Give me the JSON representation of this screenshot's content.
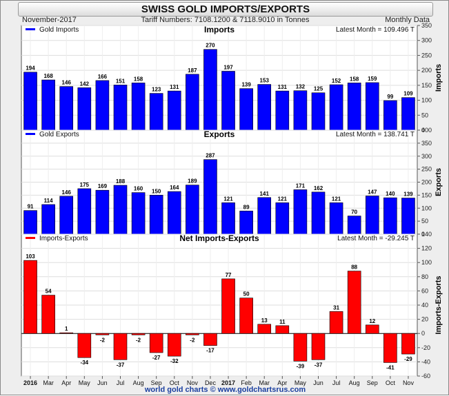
{
  "header": {
    "title": "SWISS GOLD IMPORTS/EXPORTS",
    "date": "November-2017",
    "tariff": "Tariff Numbers: 7108.1200 & 7118.9010 in Tonnes",
    "frequency": "Monthly Data"
  },
  "footer": "world gold charts © www.goldchartsrus.com",
  "colors": {
    "imports": "#0000ff",
    "exports": "#0000ff",
    "net": "#ff0000"
  },
  "chart_data": [
    {
      "type": "bar",
      "title": "Imports",
      "ylabel": "Imports",
      "legend": "Gold Imports",
      "latest": "Latest Month = 109.496 T",
      "ylim": [
        0,
        350
      ],
      "yticks": [
        0,
        50,
        100,
        150,
        200,
        250,
        300,
        350
      ],
      "categories": [
        "2016",
        "Mar",
        "Apr",
        "May",
        "Jun",
        "Jul",
        "Aug",
        "Sep",
        "Oct",
        "Nov",
        "Dec",
        "2017",
        "Feb",
        "Mar",
        "Apr",
        "May",
        "Jun",
        "Jul",
        "Aug",
        "Sep",
        "Oct",
        "Nov"
      ],
      "values": [
        194,
        168,
        146,
        142,
        166,
        151,
        158,
        123,
        131,
        187,
        270,
        197,
        139,
        153,
        131,
        132,
        125,
        152,
        158,
        159,
        99,
        109
      ],
      "labels": [
        "194",
        "168",
        "146",
        "142",
        "166",
        "151",
        "158",
        "123",
        "131",
        "187",
        "270",
        "197",
        "139",
        "153",
        "131",
        "132",
        "125",
        "152",
        "158",
        "159",
        "99",
        "109"
      ]
    },
    {
      "type": "bar",
      "title": "Exports",
      "ylabel": "Exports",
      "legend": "Gold Exports",
      "latest": "Latest Month = 138.741 T",
      "ylim": [
        0,
        400
      ],
      "yticks": [
        0,
        50,
        100,
        150,
        200,
        250,
        300,
        350,
        400
      ],
      "categories": [
        "2016",
        "Mar",
        "Apr",
        "May",
        "Jun",
        "Jul",
        "Aug",
        "Sep",
        "Oct",
        "Nov",
        "Dec",
        "2017",
        "Feb",
        "Mar",
        "Apr",
        "May",
        "Jun",
        "Jul",
        "Aug",
        "Sep",
        "Oct",
        "Nov"
      ],
      "values": [
        91,
        114,
        146,
        175,
        169,
        188,
        160,
        150,
        164,
        189,
        287,
        121,
        89,
        141,
        121,
        171,
        162,
        121,
        70,
        147,
        140,
        139
      ],
      "labels": [
        "91",
        "114",
        "146",
        "175",
        "169",
        "188",
        "160",
        "150",
        "164",
        "189",
        "287",
        "121",
        "89",
        "141",
        "121",
        "171",
        "162",
        "121",
        "70",
        "147",
        "140",
        "139"
      ]
    },
    {
      "type": "bar",
      "title": "Net Imports-Exports",
      "ylabel": "Imports-Exports",
      "legend": "Imports-Exports",
      "latest": "Latest Month = -29.245 T",
      "ylim": [
        -60,
        140
      ],
      "yticks": [
        -60,
        -40,
        -20,
        0,
        20,
        40,
        60,
        80,
        100,
        120,
        140
      ],
      "categories": [
        "2016",
        "Mar",
        "Apr",
        "May",
        "Jun",
        "Jul",
        "Aug",
        "Sep",
        "Oct",
        "Nov",
        "Dec",
        "2017",
        "Feb",
        "Mar",
        "Apr",
        "May",
        "Jun",
        "Jul",
        "Aug",
        "Sep",
        "Oct",
        "Nov"
      ],
      "values": [
        103,
        54,
        1,
        -34,
        -2,
        -37,
        -2,
        -27,
        -32,
        -2,
        -17,
        77,
        50,
        13,
        11,
        -39,
        -37,
        31,
        88,
        12,
        -41,
        -29
      ],
      "labels": [
        "103",
        "54",
        "1",
        "-34",
        "-2",
        "-37",
        "-2",
        "-27",
        "-32",
        "-2",
        "-17",
        "77",
        "50",
        "13",
        "11",
        "-39",
        "-37",
        "31",
        "88",
        "12",
        "-41",
        "-29"
      ]
    }
  ]
}
